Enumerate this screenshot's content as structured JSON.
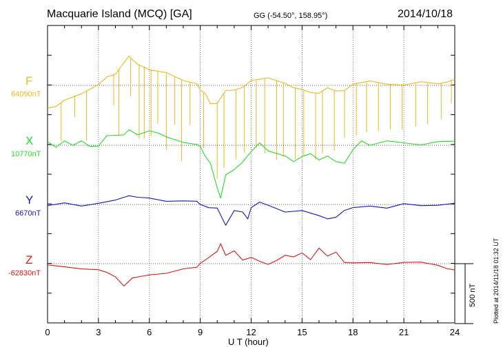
{
  "header": {
    "station": "Macquarie Island (MCQ)  [GA]",
    "coords": "GG (-54.50°, 158.95°)",
    "date": "2014/10/18"
  },
  "side_note": "Plotted at 2014/11/18 01:32 UT",
  "scale_label": "500 nT",
  "colors": {
    "F": "#f2b51c",
    "X": "#1ee11e",
    "Y": "#1414d2",
    "Z": "#e81414",
    "axis": "#000000"
  },
  "chart_data": {
    "type": "line",
    "xlabel": "U T (hour)",
    "xlim": [
      0,
      24
    ],
    "x_ticks": [
      "0",
      "3",
      "6",
      "9",
      "12",
      "15",
      "18",
      "21",
      "24"
    ],
    "scale_bar_nT": 500,
    "series": [
      {
        "name": "F",
        "baseline_label": "64090nT",
        "baseline_nT": 64090,
        "x": [
          0,
          0.5,
          1,
          2,
          3,
          3.5,
          4,
          4.5,
          4.8,
          5.3,
          6,
          7,
          8,
          8.8,
          9,
          9.3,
          9.6,
          10,
          10.5,
          11,
          11.5,
          12,
          13,
          14,
          14.5,
          15,
          15.5,
          16,
          16.5,
          17,
          17.5,
          18,
          19,
          20,
          21,
          22,
          23,
          23.5,
          24
        ],
        "y": [
          -200,
          -180,
          -120,
          -60,
          0,
          70,
          100,
          180,
          240,
          180,
          140,
          100,
          40,
          20,
          -50,
          -70,
          -150,
          -140,
          -50,
          -40,
          -10,
          30,
          60,
          20,
          -10,
          -40,
          -60,
          -60,
          -30,
          -50,
          -40,
          20,
          30,
          10,
          10,
          20,
          10,
          30,
          60
        ],
        "spikes": [
          {
            "x": 0.8,
            "depth": 320
          },
          {
            "x": 1.6,
            "depth": 180
          },
          {
            "x": 2.3,
            "depth": 420
          },
          {
            "x": 3.9,
            "depth": 260
          },
          {
            "x": 4.2,
            "depth": 550
          },
          {
            "x": 4.9,
            "depth": 320
          },
          {
            "x": 5.4,
            "depth": 620
          },
          {
            "x": 5.7,
            "depth": 600
          },
          {
            "x": 6.1,
            "depth": 560
          },
          {
            "x": 6.5,
            "depth": 440
          },
          {
            "x": 7.0,
            "depth": 640
          },
          {
            "x": 7.5,
            "depth": 400
          },
          {
            "x": 7.9,
            "depth": 680
          },
          {
            "x": 8.4,
            "depth": 360
          },
          {
            "x": 9.2,
            "depth": 460
          },
          {
            "x": 10.0,
            "depth": 640
          },
          {
            "x": 10.4,
            "depth": 620
          },
          {
            "x": 11.1,
            "depth": 580
          },
          {
            "x": 11.6,
            "depth": 560
          },
          {
            "x": 12.3,
            "depth": 560
          },
          {
            "x": 12.8,
            "depth": 620
          },
          {
            "x": 13.5,
            "depth": 660
          },
          {
            "x": 13.9,
            "depth": 620
          },
          {
            "x": 14.6,
            "depth": 600
          },
          {
            "x": 15.1,
            "depth": 540
          },
          {
            "x": 15.8,
            "depth": 560
          },
          {
            "x": 16.2,
            "depth": 520
          },
          {
            "x": 16.9,
            "depth": 500
          },
          {
            "x": 17.5,
            "depth": 400
          },
          {
            "x": 18.2,
            "depth": 440
          },
          {
            "x": 18.8,
            "depth": 420
          },
          {
            "x": 19.5,
            "depth": 400
          },
          {
            "x": 20.2,
            "depth": 380
          },
          {
            "x": 20.9,
            "depth": 380
          },
          {
            "x": 21.7,
            "depth": 360
          },
          {
            "x": 22.4,
            "depth": 340
          },
          {
            "x": 23.2,
            "depth": 300
          },
          {
            "x": 23.8,
            "depth": 200
          }
        ]
      },
      {
        "name": "X",
        "baseline_label": "10770nT",
        "baseline_nT": 10770,
        "x": [
          0,
          0.5,
          1,
          1.5,
          2,
          2.5,
          3,
          3.5,
          4,
          4.5,
          4.8,
          5.3,
          6,
          6.5,
          7,
          8,
          8.8,
          9,
          9.3,
          9.6,
          10,
          10.2,
          10.5,
          11,
          11.5,
          12,
          12.5,
          13,
          14,
          14.5,
          15,
          15.5,
          16,
          16.5,
          17,
          17.5,
          18,
          18.5,
          19,
          20,
          21,
          22,
          23,
          24
        ],
        "y": [
          20,
          -20,
          40,
          10,
          30,
          -10,
          0,
          70,
          80,
          90,
          140,
          80,
          120,
          110,
          60,
          20,
          10,
          0,
          -100,
          -150,
          -350,
          -450,
          -250,
          -200,
          -130,
          -60,
          20,
          -40,
          -100,
          -140,
          -90,
          -60,
          -130,
          -90,
          -130,
          -160,
          -40,
          40,
          10,
          30,
          20,
          10,
          20,
          30
        ]
      },
      {
        "name": "Y",
        "baseline_label": "6670nT",
        "baseline_nT": 6670,
        "x": [
          0,
          1,
          2,
          3,
          4,
          4.5,
          4.8,
          5.3,
          6,
          7,
          8,
          8.8,
          9,
          9.5,
          10,
          10.3,
          10.5,
          11,
          11.5,
          11.8,
          12,
          12.5,
          13,
          14,
          15,
          16,
          16.5,
          17,
          17.5,
          18,
          19,
          20,
          21,
          22,
          23,
          24
        ],
        "y": [
          -20,
          10,
          -10,
          20,
          30,
          60,
          80,
          50,
          50,
          30,
          40,
          20,
          0,
          -20,
          -40,
          -120,
          -170,
          -40,
          -70,
          -120,
          -20,
          10,
          -10,
          -60,
          -40,
          -100,
          -120,
          -100,
          -60,
          -30,
          -10,
          -20,
          0,
          -10,
          0,
          0
        ]
      },
      {
        "name": "Z",
        "baseline_label": "-62830nT",
        "baseline_nT": -62830,
        "x": [
          0,
          1,
          2,
          3,
          3.5,
          4,
          4.5,
          5,
          5.5,
          6,
          7,
          8,
          8.8,
          9,
          9.5,
          10,
          10.2,
          10.5,
          11,
          11.5,
          12,
          12.5,
          13,
          13.5,
          14,
          14.5,
          15,
          15.5,
          16,
          16.5,
          17,
          17.5,
          18,
          19,
          20,
          21,
          22,
          23,
          23.5,
          24
        ],
        "y": [
          -20,
          -30,
          -40,
          -40,
          -80,
          -110,
          -180,
          -130,
          -110,
          -90,
          -70,
          -50,
          -30,
          10,
          40,
          100,
          170,
          80,
          100,
          30,
          60,
          10,
          -10,
          30,
          80,
          50,
          90,
          40,
          120,
          60,
          100,
          20,
          0,
          10,
          0,
          0,
          10,
          -10,
          -30,
          -60
        ]
      }
    ]
  }
}
